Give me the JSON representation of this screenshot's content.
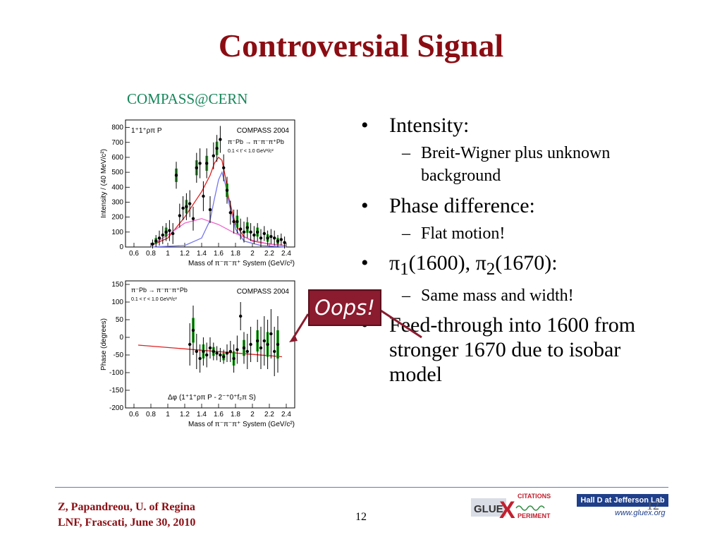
{
  "slide": {
    "title": "Controversial Signal",
    "subtitle": "COMPASS@CERN",
    "page_number": "12",
    "footer_line1": "Z, Papandreou, U. of Regina",
    "footer_line2": "LNF, Frascati, June 30, 2010",
    "callout": "Oops!",
    "logo_gluex_text": "GLUE",
    "logo_x": "X",
    "logo_citations": "CITATIONS",
    "logo_periment": "PERIMENT",
    "hall_label": "Hall D at Jefferson Lab",
    "hall_url": "www.gluex.org",
    "corner_number": "12"
  },
  "bullets": [
    {
      "text": "Intensity:",
      "sub": [
        "Breit-Wigner plus unknown background"
      ]
    },
    {
      "text": "Phase difference:",
      "sub": [
        "Flat motion!"
      ]
    },
    {
      "text_html": "π<sub>1</sub>(1600), π<sub>2</sub>(1670):",
      "sub": [
        "Same mass and width!"
      ]
    },
    {
      "text": "Feed-through into 1600 from stronger 1670 due to isobar model",
      "sub": []
    }
  ],
  "chart_data": [
    {
      "type": "scatter",
      "panel_label": "1⁺1⁺ρπ P",
      "experiment": "COMPASS 2004",
      "reaction": "π⁻Pb → π⁻π⁻π⁺Pb",
      "cut": "0.1 < t' < 1.0 GeV²/c²",
      "xlabel": "Mass of π⁻π⁻π⁺ System (GeV/c²)",
      "ylabel": "Intensity / (40 MeV/c²)",
      "xlim": [
        0.5,
        2.5
      ],
      "ylim": [
        0,
        850
      ],
      "xticks": [
        "0.6",
        "0.8",
        "1",
        "1.2",
        "1.4",
        "1.6",
        "1.8",
        "2",
        "2.2",
        "2.4"
      ],
      "yticks": [
        "0",
        "100",
        "200",
        "300",
        "400",
        "500",
        "600",
        "700",
        "800"
      ],
      "points": [
        {
          "x": 0.82,
          "y": 20,
          "e": 30
        },
        {
          "x": 0.86,
          "y": 40,
          "e": 40
        },
        {
          "x": 0.9,
          "y": 60,
          "e": 50
        },
        {
          "x": 0.94,
          "y": 80,
          "e": 60
        },
        {
          "x": 0.98,
          "y": 100,
          "e": 60
        },
        {
          "x": 1.02,
          "y": 110,
          "e": 70
        },
        {
          "x": 1.06,
          "y": 90,
          "e": 70
        },
        {
          "x": 1.1,
          "y": 480,
          "e": 90
        },
        {
          "x": 1.14,
          "y": 210,
          "e": 80
        },
        {
          "x": 1.18,
          "y": 260,
          "e": 80
        },
        {
          "x": 1.22,
          "y": 270,
          "e": 90
        },
        {
          "x": 1.26,
          "y": 290,
          "e": 90
        },
        {
          "x": 1.3,
          "y": 190,
          "e": 80
        },
        {
          "x": 1.34,
          "y": 530,
          "e": 100
        },
        {
          "x": 1.38,
          "y": 560,
          "e": 100
        },
        {
          "x": 1.42,
          "y": 340,
          "e": 100
        },
        {
          "x": 1.46,
          "y": 560,
          "e": 100
        },
        {
          "x": 1.5,
          "y": 250,
          "e": 90
        },
        {
          "x": 1.54,
          "y": 610,
          "e": 90
        },
        {
          "x": 1.58,
          "y": 660,
          "e": 90
        },
        {
          "x": 1.62,
          "y": 720,
          "e": 90
        },
        {
          "x": 1.66,
          "y": 530,
          "e": 90
        },
        {
          "x": 1.7,
          "y": 380,
          "e": 90
        },
        {
          "x": 1.74,
          "y": 230,
          "e": 80
        },
        {
          "x": 1.78,
          "y": 170,
          "e": 80
        },
        {
          "x": 1.82,
          "y": 170,
          "e": 80
        },
        {
          "x": 1.86,
          "y": 120,
          "e": 70
        },
        {
          "x": 1.9,
          "y": 100,
          "e": 70
        },
        {
          "x": 1.94,
          "y": 130,
          "e": 70
        },
        {
          "x": 1.98,
          "y": 100,
          "e": 60
        },
        {
          "x": 2.02,
          "y": 80,
          "e": 60
        },
        {
          "x": 2.06,
          "y": 100,
          "e": 60
        },
        {
          "x": 2.1,
          "y": 60,
          "e": 60
        },
        {
          "x": 2.14,
          "y": 90,
          "e": 50
        },
        {
          "x": 2.18,
          "y": 60,
          "e": 50
        },
        {
          "x": 2.22,
          "y": 70,
          "e": 50
        },
        {
          "x": 2.26,
          "y": 60,
          "e": 50
        },
        {
          "x": 2.3,
          "y": 40,
          "e": 40
        },
        {
          "x": 2.34,
          "y": 50,
          "e": 40
        },
        {
          "x": 2.38,
          "y": 30,
          "e": 40
        }
      ],
      "curves": [
        {
          "color": "#e02020",
          "x": [
            0.8,
            1.0,
            1.2,
            1.4,
            1.5,
            1.55,
            1.6,
            1.64,
            1.68,
            1.72,
            1.8,
            1.9,
            2.0,
            2.2,
            2.4
          ],
          "y": [
            10,
            60,
            200,
            370,
            480,
            560,
            600,
            580,
            470,
            330,
            150,
            70,
            40,
            20,
            10
          ]
        },
        {
          "color": "#7777ee",
          "x": [
            0.8,
            1.2,
            1.4,
            1.5,
            1.55,
            1.6,
            1.64,
            1.68,
            1.72,
            1.8,
            1.9,
            2.1,
            2.4
          ],
          "y": [
            0,
            10,
            60,
            180,
            320,
            450,
            500,
            420,
            300,
            120,
            40,
            10,
            0
          ]
        },
        {
          "color": "#ee66cc",
          "x": [
            0.8,
            1.0,
            1.2,
            1.4,
            1.6,
            1.8,
            2.0,
            2.2,
            2.4
          ],
          "y": [
            10,
            80,
            160,
            190,
            150,
            90,
            45,
            20,
            8
          ]
        }
      ]
    },
    {
      "type": "scatter",
      "panel_label": "",
      "experiment": "COMPASS 2004",
      "reaction": "π⁻Pb → π⁻π⁻π⁺Pb",
      "cut": "0.1 < t' < 1.0 GeV²/c²",
      "legend": "Δφ (1⁺1⁺ρπ P - 2⁻⁺0⁺f₂π S)",
      "xlabel": "Mass of π⁻π⁻π⁺ System (GeV/c²)",
      "ylabel": "Phase (degrees)",
      "xlim": [
        0.5,
        2.5
      ],
      "ylim": [
        -200,
        160
      ],
      "xticks": [
        "0.6",
        "0.8",
        "1",
        "1.2",
        "1.4",
        "1.6",
        "1.8",
        "2",
        "2.2",
        "2.4"
      ],
      "yticks": [
        "-200",
        "-150",
        "-100",
        "-50",
        "0",
        "50",
        "100",
        "150"
      ],
      "points": [
        {
          "x": 1.26,
          "y": -20,
          "e": 60
        },
        {
          "x": 1.3,
          "y": 20,
          "e": 70
        },
        {
          "x": 1.34,
          "y": -40,
          "e": 50
        },
        {
          "x": 1.38,
          "y": -60,
          "e": 40
        },
        {
          "x": 1.42,
          "y": -40,
          "e": 40
        },
        {
          "x": 1.46,
          "y": -50,
          "e": 35
        },
        {
          "x": 1.5,
          "y": -30,
          "e": 30
        },
        {
          "x": 1.54,
          "y": -40,
          "e": 25
        },
        {
          "x": 1.58,
          "y": -45,
          "e": 20
        },
        {
          "x": 1.62,
          "y": -50,
          "e": 20
        },
        {
          "x": 1.66,
          "y": -55,
          "e": 20
        },
        {
          "x": 1.7,
          "y": -45,
          "e": 25
        },
        {
          "x": 1.74,
          "y": -40,
          "e": 30
        },
        {
          "x": 1.78,
          "y": -60,
          "e": 40
        },
        {
          "x": 1.82,
          "y": -35,
          "e": 40
        },
        {
          "x": 1.86,
          "y": 60,
          "e": 40
        },
        {
          "x": 1.9,
          "y": -30,
          "e": 45
        },
        {
          "x": 1.94,
          "y": -40,
          "e": 50
        },
        {
          "x": 1.98,
          "y": -20,
          "e": 50
        },
        {
          "x": 2.06,
          "y": -10,
          "e": 60
        },
        {
          "x": 2.1,
          "y": -30,
          "e": 60
        },
        {
          "x": 2.14,
          "y": -10,
          "e": 70
        },
        {
          "x": 2.18,
          "y": -20,
          "e": 70
        },
        {
          "x": 2.22,
          "y": 10,
          "e": 70
        },
        {
          "x": 2.26,
          "y": -40,
          "e": 70
        },
        {
          "x": 2.3,
          "y": -20,
          "e": 80
        }
      ],
      "curves": [
        {
          "color": "#e02020",
          "x": [
            0.65,
            2.35
          ],
          "y": [
            -22,
            -55
          ]
        }
      ]
    }
  ]
}
